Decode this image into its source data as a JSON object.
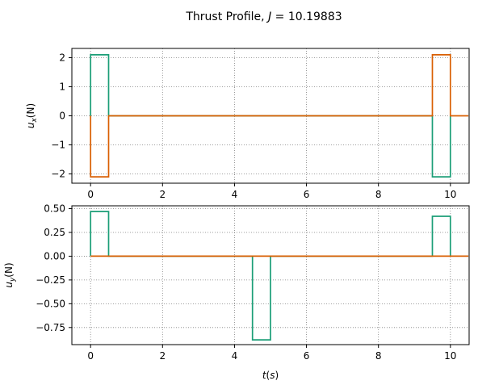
{
  "title": {
    "prefix": "Thrust Profile, ",
    "var": "J",
    "equals": " = 10.19883"
  },
  "colors": {
    "series_a": "#1b9e77",
    "series_b": "#d95f02",
    "grid": "#808080"
  },
  "chart_data": [
    {
      "type": "line",
      "title": "Thrust Profile, J = 10.19883",
      "ylabel": {
        "base": "u",
        "sub": "x",
        "suffix": "(N)"
      },
      "xlabel": "",
      "xlim": [
        -0.52,
        10.52
      ],
      "ylim": [
        -2.32,
        2.32
      ],
      "xticks": [
        0,
        2,
        4,
        6,
        8,
        10
      ],
      "yticks": [
        -2,
        -1,
        0,
        1,
        2
      ],
      "ytick_labels": [
        "−2",
        "−1",
        "0",
        "1",
        "2"
      ],
      "grid": true,
      "series": [
        {
          "color_key": "series_a",
          "x": [
            0,
            0,
            0.5,
            0.5,
            9.5,
            9.5,
            10,
            10
          ],
          "y": [
            0,
            2.1,
            2.1,
            0,
            0,
            -2.1,
            -2.1,
            0
          ]
        },
        {
          "color_key": "series_b",
          "x": [
            0,
            0,
            0.5,
            0.5,
            9.5,
            9.5,
            10,
            10,
            10.5
          ],
          "y": [
            0,
            -2.1,
            -2.1,
            0,
            0,
            2.1,
            2.1,
            0,
            0
          ]
        }
      ]
    },
    {
      "type": "line",
      "ylabel": {
        "base": "u",
        "sub": "y",
        "suffix": "(N)"
      },
      "xlabel": "t(s)",
      "xlim": [
        -0.52,
        10.52
      ],
      "ylim": [
        -0.93,
        0.53
      ],
      "xticks": [
        0,
        2,
        4,
        6,
        8,
        10
      ],
      "yticks": [
        -0.75,
        -0.5,
        -0.25,
        0,
        0.25,
        0.5
      ],
      "ytick_labels": [
        "−0.75",
        "−0.50",
        "−0.25",
        "0.00",
        "0.25",
        "0.50"
      ],
      "grid": true,
      "series": [
        {
          "color_key": "series_a",
          "x": [
            0,
            0,
            0.5,
            0.5,
            4.5,
            4.5,
            5,
            5,
            9.5,
            9.5,
            10,
            10
          ],
          "y": [
            0,
            0.47,
            0.47,
            0,
            0,
            -0.88,
            -0.88,
            0,
            0,
            0.42,
            0.42,
            0
          ]
        },
        {
          "color_key": "series_b",
          "x": [
            0,
            10.5
          ],
          "y": [
            0,
            0
          ]
        }
      ]
    }
  ]
}
